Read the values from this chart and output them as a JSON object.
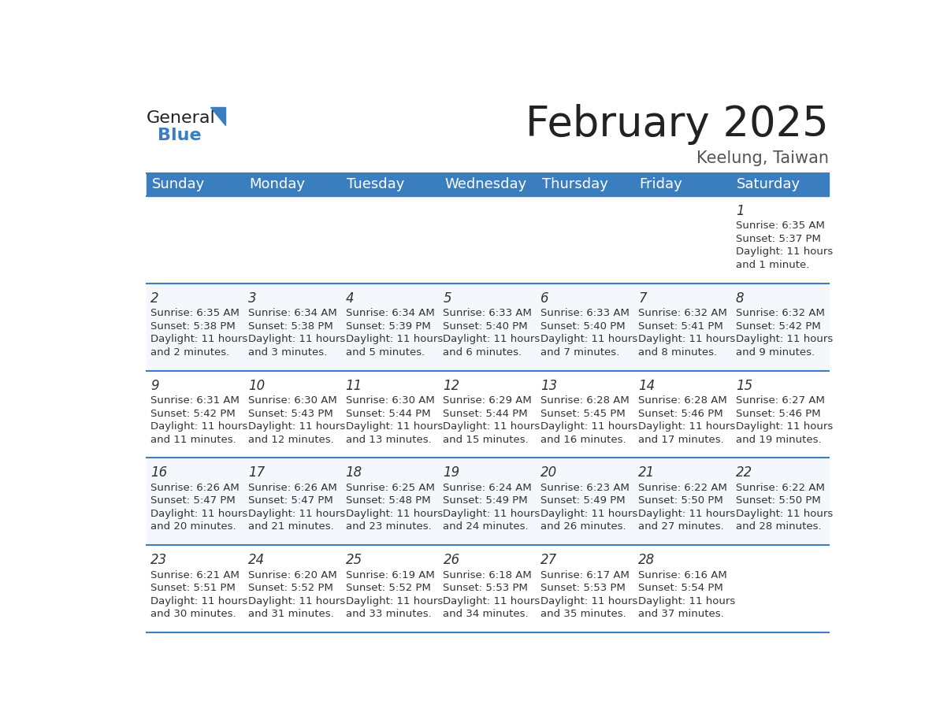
{
  "title": "February 2025",
  "subtitle": "Keelung, Taiwan",
  "header_color": "#3a7ebf",
  "header_text_color": "#ffffff",
  "border_color": "#3a7ebf",
  "row_colors": [
    "#ffffff",
    "#f0f4f8"
  ],
  "day_names": [
    "Sunday",
    "Monday",
    "Tuesday",
    "Wednesday",
    "Thursday",
    "Friday",
    "Saturday"
  ],
  "title_fontsize": 38,
  "subtitle_fontsize": 15,
  "day_header_fontsize": 13,
  "cell_day_fontsize": 12,
  "cell_text_fontsize": 9.5,
  "calendar_data": [
    [
      null,
      null,
      null,
      null,
      null,
      null,
      {
        "day": "1",
        "sunrise": "6:35 AM",
        "sunset": "5:37 PM",
        "daylight": "11 hours\nand 1 minute."
      }
    ],
    [
      {
        "day": "2",
        "sunrise": "6:35 AM",
        "sunset": "5:38 PM",
        "daylight": "11 hours\nand 2 minutes."
      },
      {
        "day": "3",
        "sunrise": "6:34 AM",
        "sunset": "5:38 PM",
        "daylight": "11 hours\nand 3 minutes."
      },
      {
        "day": "4",
        "sunrise": "6:34 AM",
        "sunset": "5:39 PM",
        "daylight": "11 hours\nand 5 minutes."
      },
      {
        "day": "5",
        "sunrise": "6:33 AM",
        "sunset": "5:40 PM",
        "daylight": "11 hours\nand 6 minutes."
      },
      {
        "day": "6",
        "sunrise": "6:33 AM",
        "sunset": "5:40 PM",
        "daylight": "11 hours\nand 7 minutes."
      },
      {
        "day": "7",
        "sunrise": "6:32 AM",
        "sunset": "5:41 PM",
        "daylight": "11 hours\nand 8 minutes."
      },
      {
        "day": "8",
        "sunrise": "6:32 AM",
        "sunset": "5:42 PM",
        "daylight": "11 hours\nand 9 minutes."
      }
    ],
    [
      {
        "day": "9",
        "sunrise": "6:31 AM",
        "sunset": "5:42 PM",
        "daylight": "11 hours\nand 11 minutes."
      },
      {
        "day": "10",
        "sunrise": "6:30 AM",
        "sunset": "5:43 PM",
        "daylight": "11 hours\nand 12 minutes."
      },
      {
        "day": "11",
        "sunrise": "6:30 AM",
        "sunset": "5:44 PM",
        "daylight": "11 hours\nand 13 minutes."
      },
      {
        "day": "12",
        "sunrise": "6:29 AM",
        "sunset": "5:44 PM",
        "daylight": "11 hours\nand 15 minutes."
      },
      {
        "day": "13",
        "sunrise": "6:28 AM",
        "sunset": "5:45 PM",
        "daylight": "11 hours\nand 16 minutes."
      },
      {
        "day": "14",
        "sunrise": "6:28 AM",
        "sunset": "5:46 PM",
        "daylight": "11 hours\nand 17 minutes."
      },
      {
        "day": "15",
        "sunrise": "6:27 AM",
        "sunset": "5:46 PM",
        "daylight": "11 hours\nand 19 minutes."
      }
    ],
    [
      {
        "day": "16",
        "sunrise": "6:26 AM",
        "sunset": "5:47 PM",
        "daylight": "11 hours\nand 20 minutes."
      },
      {
        "day": "17",
        "sunrise": "6:26 AM",
        "sunset": "5:47 PM",
        "daylight": "11 hours\nand 21 minutes."
      },
      {
        "day": "18",
        "sunrise": "6:25 AM",
        "sunset": "5:48 PM",
        "daylight": "11 hours\nand 23 minutes."
      },
      {
        "day": "19",
        "sunrise": "6:24 AM",
        "sunset": "5:49 PM",
        "daylight": "11 hours\nand 24 minutes."
      },
      {
        "day": "20",
        "sunrise": "6:23 AM",
        "sunset": "5:49 PM",
        "daylight": "11 hours\nand 26 minutes."
      },
      {
        "day": "21",
        "sunrise": "6:22 AM",
        "sunset": "5:50 PM",
        "daylight": "11 hours\nand 27 minutes."
      },
      {
        "day": "22",
        "sunrise": "6:22 AM",
        "sunset": "5:50 PM",
        "daylight": "11 hours\nand 28 minutes."
      }
    ],
    [
      {
        "day": "23",
        "sunrise": "6:21 AM",
        "sunset": "5:51 PM",
        "daylight": "11 hours\nand 30 minutes."
      },
      {
        "day": "24",
        "sunrise": "6:20 AM",
        "sunset": "5:52 PM",
        "daylight": "11 hours\nand 31 minutes."
      },
      {
        "day": "25",
        "sunrise": "6:19 AM",
        "sunset": "5:52 PM",
        "daylight": "11 hours\nand 33 minutes."
      },
      {
        "day": "26",
        "sunrise": "6:18 AM",
        "sunset": "5:53 PM",
        "daylight": "11 hours\nand 34 minutes."
      },
      {
        "day": "27",
        "sunrise": "6:17 AM",
        "sunset": "5:53 PM",
        "daylight": "11 hours\nand 35 minutes."
      },
      {
        "day": "28",
        "sunrise": "6:16 AM",
        "sunset": "5:54 PM",
        "daylight": "11 hours\nand 37 minutes."
      },
      null
    ]
  ]
}
